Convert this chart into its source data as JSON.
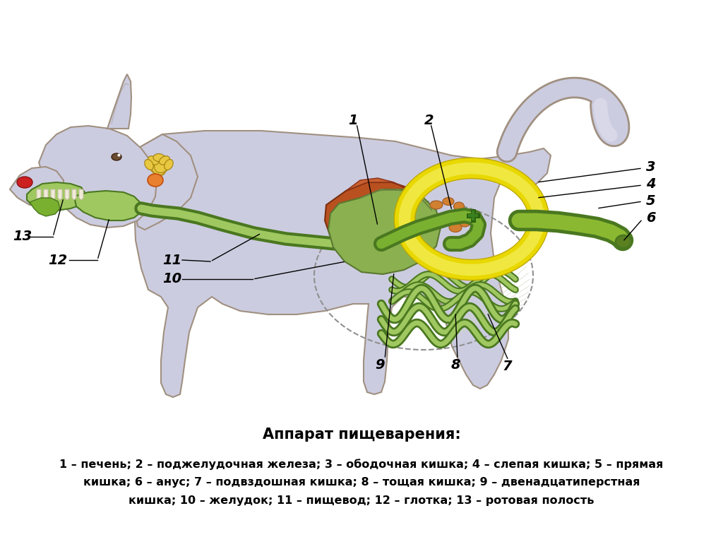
{
  "title": "Аппарат пищеварения:",
  "caption_line1": "1 – печень; 2 – поджелудочная железа; 3 – ободочная кишка; 4 – слепая кишка; 5 – прямая",
  "caption_line2": "кишка; 6 – анус; 7 – подвздошная кишка; 8 – тощая кишка; 9 – двенадцатиперстная",
  "caption_line3": "кишка; 10 – желудок; 11 – пищевод; 12 – глотка; 13 – ротовая полость",
  "bg_color": "#ffffff"
}
